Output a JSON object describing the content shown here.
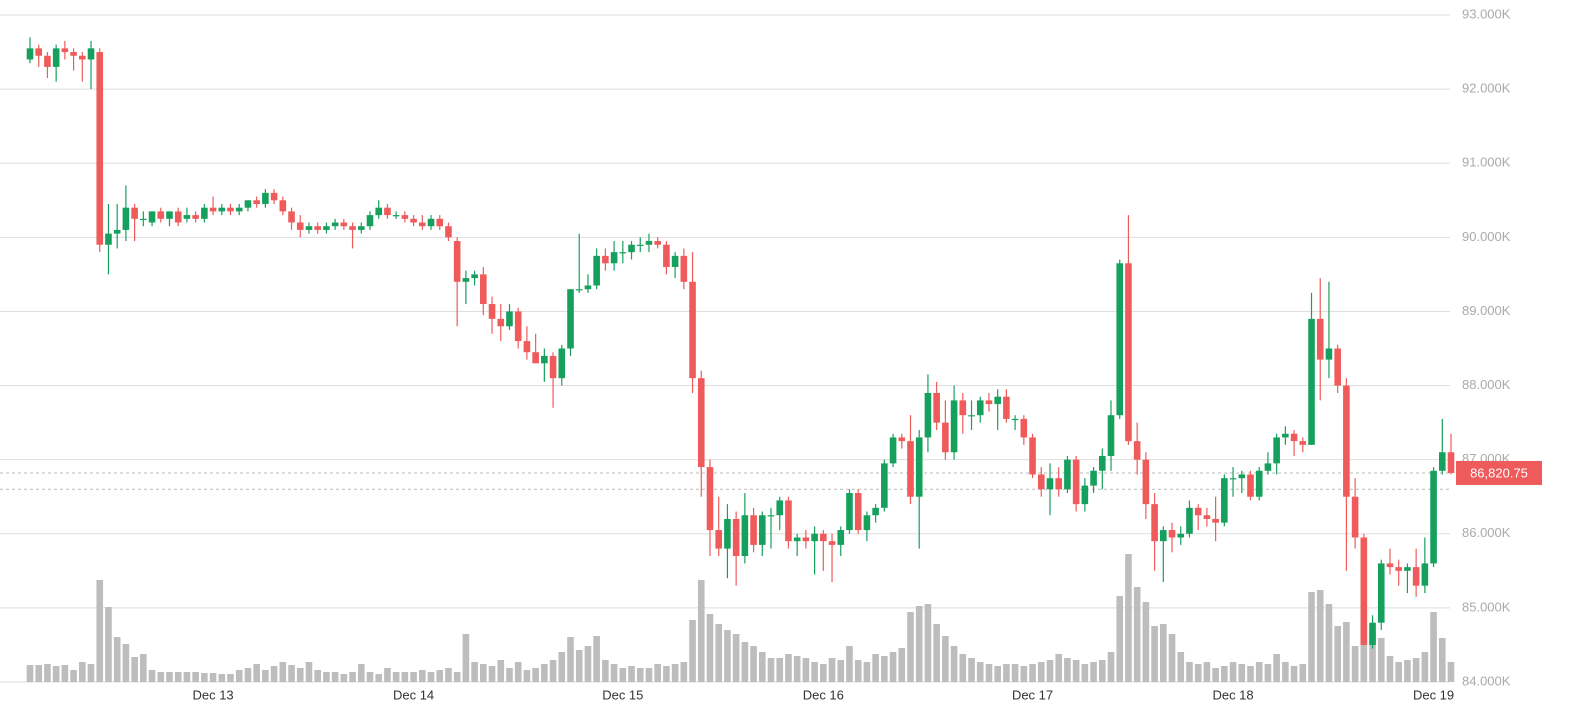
{
  "chart_data": {
    "type": "candlestick",
    "up_color": "#16a05d",
    "down_color": "#ef5b5b",
    "volume_color": "#bdbdbd",
    "grid": true,
    "ylim": [
      84000,
      93000
    ],
    "yticks": [
      {
        "value": 84000,
        "label": "84.000K"
      },
      {
        "value": 85000,
        "label": "85.000K"
      },
      {
        "value": 86000,
        "label": "86.000K"
      },
      {
        "value": 87000,
        "label": "87.000K"
      },
      {
        "value": 88000,
        "label": "88.000K"
      },
      {
        "value": 89000,
        "label": "89.000K"
      },
      {
        "value": 90000,
        "label": "90.000K"
      },
      {
        "value": 91000,
        "label": "91.000K"
      },
      {
        "value": 92000,
        "label": "92.000K"
      },
      {
        "value": 93000,
        "label": "93.000K"
      }
    ],
    "last_price": 86820.75,
    "last_price_label": "86,820.75",
    "reference_line": 86600,
    "categories": [
      null,
      null,
      null,
      null,
      null,
      null,
      null,
      null,
      null,
      null,
      null,
      null,
      null,
      null,
      null,
      null,
      null,
      null,
      null,
      null,
      null,
      "Dec 13",
      null,
      null,
      null,
      null,
      null,
      null,
      null,
      null,
      null,
      null,
      null,
      null,
      null,
      null,
      null,
      null,
      null,
      null,
      null,
      null,
      null,
      null,
      "Dec 14",
      null,
      null,
      null,
      null,
      null,
      null,
      null,
      null,
      null,
      null,
      null,
      null,
      null,
      null,
      null,
      null,
      null,
      null,
      null,
      null,
      null,
      null,
      null,
      "Dec 15",
      null,
      null,
      null,
      null,
      null,
      null,
      null,
      null,
      null,
      null,
      null,
      null,
      null,
      null,
      null,
      null,
      null,
      null,
      null,
      null,
      null,
      null,
      "Dec 16",
      null,
      null,
      null,
      null,
      null,
      null,
      null,
      null,
      null,
      null,
      null,
      null,
      null,
      null,
      null,
      null,
      null,
      null,
      null,
      null,
      null,
      null,
      null,
      "Dec 17",
      null,
      null,
      null,
      null,
      null,
      null,
      null,
      null,
      null,
      null,
      null,
      null,
      null,
      null,
      null,
      null,
      null,
      null,
      null,
      null,
      null,
      null,
      "Dec 18",
      null,
      null,
      null,
      null,
      null,
      null,
      null,
      null,
      null,
      null,
      null,
      null,
      null,
      null,
      null,
      null,
      null,
      null,
      null,
      null,
      null,
      null,
      "Dec 19",
      null,
      null
    ],
    "open": [
      92400,
      92550,
      92450,
      92300,
      92550,
      92500,
      92450,
      92400,
      92500,
      89900,
      90050,
      90100,
      90400,
      90250,
      90200,
      90350,
      90250,
      90350,
      90250,
      90300,
      90250,
      90400,
      90350,
      90400,
      90350,
      90400,
      90500,
      90450,
      90600,
      90500,
      90350,
      90200,
      90100,
      90150,
      90100,
      90150,
      90200,
      90150,
      90100,
      90150,
      90300,
      90400,
      90300,
      90300,
      90250,
      90200,
      90150,
      90250,
      90150,
      89950,
      89400,
      89450,
      89500,
      89100,
      88900,
      88800,
      89000,
      88600,
      88450,
      88300,
      88400,
      88100,
      88500,
      89300,
      89300,
      89350,
      89750,
      89650,
      89800,
      89800,
      89900,
      89900,
      89950,
      89900,
      89600,
      89750,
      89400,
      88100,
      86900,
      86050,
      85800,
      86200,
      85700,
      86250,
      85850,
      86250,
      86250,
      86450,
      85900,
      85950,
      85900,
      86000,
      85900,
      85850,
      86050,
      86550,
      86050,
      86250,
      86350,
      86950,
      87300,
      87250,
      86500,
      87300,
      87900,
      87500,
      87100,
      87800,
      87600,
      87600,
      87800,
      87750,
      87850,
      87550,
      87550,
      87300,
      86800,
      86600,
      86750,
      86600,
      87000,
      86400,
      86650,
      86850,
      87050,
      87600,
      89650,
      87250,
      87000,
      86400,
      85900,
      86050,
      85950,
      86000,
      86350,
      86250,
      86200,
      86150,
      86750,
      86750,
      86800,
      86500,
      86850,
      86950,
      87300,
      87350,
      87250,
      87200,
      88900,
      88350,
      88500,
      88000,
      86500,
      85950,
      84500,
      84800,
      85600,
      85550,
      85500,
      85550,
      85300,
      85600,
      86850,
      87100
    ],
    "high": [
      92700,
      92600,
      92500,
      92600,
      92650,
      92550,
      92500,
      92650,
      92550,
      90450,
      90450,
      90700,
      90450,
      90350,
      90350,
      90400,
      90350,
      90400,
      90400,
      90350,
      90450,
      90550,
      90450,
      90450,
      90450,
      90500,
      90550,
      90650,
      90650,
      90550,
      90400,
      90300,
      90200,
      90200,
      90200,
      90250,
      90250,
      90200,
      90200,
      90350,
      90500,
      90450,
      90350,
      90350,
      90300,
      90300,
      90300,
      90300,
      90200,
      90000,
      89550,
      89550,
      89600,
      89200,
      89100,
      89100,
      89050,
      88800,
      88700,
      88500,
      88450,
      88550,
      89300,
      90050,
      89500,
      89850,
      89850,
      89950,
      89950,
      89950,
      90000,
      90050,
      90000,
      89950,
      89800,
      89850,
      89800,
      88200,
      87000,
      86500,
      86400,
      86300,
      86550,
      86350,
      86300,
      86350,
      86500,
      86500,
      86000,
      86050,
      86100,
      86050,
      86000,
      86100,
      86600,
      86600,
      86300,
      86400,
      87000,
      87350,
      87350,
      87600,
      87400,
      88150,
      88050,
      87800,
      88000,
      87900,
      87800,
      87850,
      87900,
      87950,
      87950,
      87600,
      87600,
      87350,
      86900,
      86950,
      86900,
      87050,
      87050,
      86750,
      86900,
      87150,
      87800,
      89700,
      90300,
      87500,
      87100,
      86550,
      86100,
      86150,
      86100,
      86450,
      86400,
      86350,
      86500,
      86800,
      86900,
      86850,
      86850,
      86900,
      87100,
      87350,
      87450,
      87400,
      87300,
      89250,
      89450,
      89400,
      88550,
      88100,
      86750,
      86000,
      84900,
      85650,
      85800,
      85650,
      85600,
      85800,
      85950,
      86900,
      87550,
      87350
    ],
    "low": [
      92350,
      92300,
      92150,
      92100,
      92400,
      92250,
      92100,
      92000,
      89800,
      89500,
      89850,
      89950,
      89950,
      90150,
      90150,
      90200,
      90150,
      90150,
      90200,
      90200,
      90200,
      90300,
      90300,
      90300,
      90300,
      90350,
      90400,
      90400,
      90450,
      90300,
      90100,
      90000,
      90050,
      90050,
      90050,
      90100,
      90100,
      89850,
      90050,
      90100,
      90250,
      90250,
      90250,
      90200,
      90150,
      90100,
      90100,
      90100,
      89950,
      88800,
      89100,
      89350,
      88950,
      88700,
      88600,
      88750,
      88500,
      88350,
      88300,
      88050,
      87700,
      88000,
      88400,
      89250,
      89250,
      89300,
      89550,
      89550,
      89650,
      89700,
      89800,
      89800,
      89850,
      89500,
      89450,
      89300,
      87900,
      86500,
      85700,
      85700,
      85400,
      85300,
      85600,
      85750,
      85700,
      85800,
      86050,
      85800,
      85700,
      85800,
      85450,
      85500,
      85350,
      85700,
      86000,
      86000,
      85900,
      86150,
      86300,
      86900,
      87150,
      86400,
      85800,
      87100,
      87400,
      87000,
      87000,
      87350,
      87400,
      87500,
      87650,
      87400,
      87500,
      87400,
      87200,
      86750,
      86500,
      86250,
      86500,
      86550,
      86300,
      86300,
      86550,
      86600,
      86850,
      87550,
      87200,
      86800,
      86200,
      85500,
      85350,
      85750,
      85850,
      85950,
      86050,
      86100,
      85900,
      86100,
      86500,
      86550,
      86450,
      86450,
      86800,
      86800,
      87200,
      87050,
      87100,
      87200,
      87800,
      88100,
      87900,
      85500,
      85800,
      84500,
      84450,
      84700,
      85450,
      85300,
      85200,
      85150,
      85200,
      85550,
      86800,
      86800
    ],
    "close": [
      92550,
      92450,
      92300,
      92550,
      92500,
      92450,
      92400,
      92550,
      89900,
      90050,
      90100,
      90400,
      90250,
      90250,
      90350,
      90250,
      90350,
      90200,
      90300,
      90250,
      90400,
      90350,
      90400,
      90350,
      90400,
      90500,
      90450,
      90600,
      90500,
      90350,
      90200,
      90100,
      90150,
      90100,
      90150,
      90200,
      90150,
      90100,
      90150,
      90300,
      90400,
      90300,
      90300,
      90250,
      90200,
      90150,
      90250,
      90150,
      90000,
      89400,
      89450,
      89500,
      89100,
      88900,
      88800,
      89000,
      88600,
      88450,
      88300,
      88400,
      88100,
      88500,
      89300,
      89300,
      89350,
      89750,
      89650,
      89800,
      89800,
      89900,
      89900,
      89950,
      89900,
      89600,
      89750,
      89400,
      88100,
      86900,
      86050,
      85800,
      86200,
      85700,
      86250,
      85850,
      86250,
      86250,
      86450,
      85900,
      85950,
      85900,
      86000,
      85900,
      85850,
      86050,
      86550,
      86050,
      86250,
      86350,
      86950,
      87300,
      87250,
      86500,
      87300,
      87900,
      87500,
      87100,
      87800,
      87600,
      87600,
      87800,
      87750,
      87850,
      87550,
      87550,
      87300,
      86800,
      86600,
      86750,
      86600,
      87000,
      86400,
      86650,
      86850,
      87050,
      87600,
      89650,
      87250,
      87000,
      86400,
      85900,
      86050,
      85950,
      86000,
      86350,
      86250,
      86200,
      86150,
      86750,
      86750,
      86800,
      86500,
      86850,
      86950,
      87300,
      87350,
      87250,
      87200,
      88900,
      88350,
      88500,
      88000,
      86500,
      85950,
      84500,
      84800,
      85600,
      85550,
      85500,
      85550,
      85300,
      85600,
      86850,
      87100,
      86820.75
    ],
    "volume": [
      17,
      17,
      18,
      16,
      17,
      12,
      20,
      18,
      102,
      75,
      45,
      38,
      25,
      28,
      12,
      10,
      10,
      10,
      10,
      10,
      9,
      9,
      8,
      8,
      12,
      14,
      18,
      12,
      16,
      20,
      17,
      14,
      20,
      12,
      10,
      10,
      8,
      10,
      18,
      10,
      8,
      14,
      10,
      10,
      10,
      12,
      10,
      12,
      14,
      10,
      48,
      20,
      18,
      16,
      22,
      14,
      20,
      12,
      14,
      18,
      22,
      30,
      45,
      32,
      36,
      46,
      22,
      18,
      14,
      16,
      14,
      14,
      18,
      16,
      18,
      20,
      62,
      102,
      68,
      58,
      52,
      48,
      40,
      36,
      30,
      24,
      24,
      28,
      26,
      24,
      20,
      18,
      24,
      22,
      36,
      22,
      20,
      28,
      26,
      30,
      34,
      70,
      76,
      78,
      58,
      46,
      36,
      28,
      24,
      20,
      18,
      16,
      18,
      18,
      16,
      18,
      20,
      22,
      28,
      24,
      22,
      18,
      20,
      22,
      30,
      86,
      128,
      95,
      80,
      56,
      58,
      48,
      30,
      20,
      18,
      20,
      14,
      16,
      20,
      18,
      16,
      20,
      18,
      28,
      20,
      16,
      18,
      90,
      92,
      78,
      56,
      60,
      36,
      62,
      50,
      44,
      26,
      20,
      22,
      24,
      30,
      70,
      44,
      20
    ]
  }
}
